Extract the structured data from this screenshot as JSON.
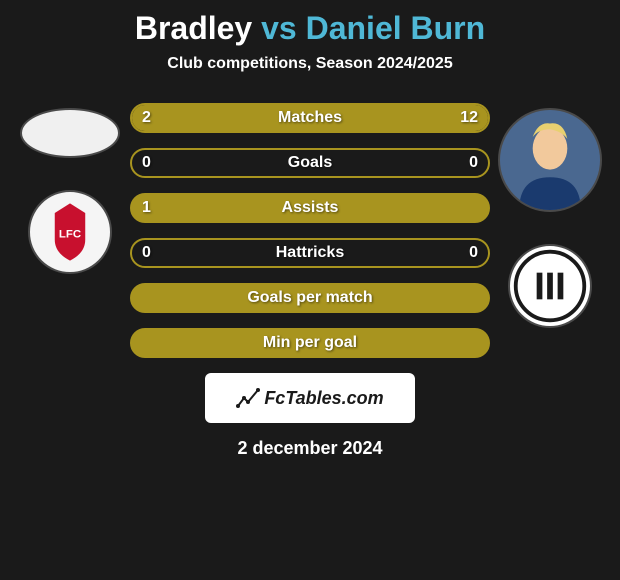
{
  "title": {
    "player1": "Bradley",
    "connector": "vs",
    "player2": "Daniel Burn"
  },
  "title_colors": {
    "p1": "#ffffff",
    "vs": "#4fb8d6",
    "p2": "#4fb8d6"
  },
  "title_fontsize": 32,
  "subtitle": "Club competitions, Season 2024/2025",
  "subtitle_fontsize": 16,
  "background_color": "#1a1a1a",
  "left_side": {
    "avatar": {
      "size": 100,
      "height": 50,
      "bg": "#f0f0f0"
    },
    "crest": {
      "size": 84,
      "bg": "#f5f5f5",
      "accent": "#c8102e",
      "label": "LFC"
    }
  },
  "right_side": {
    "avatar": {
      "size": 104,
      "bg": "#4a6890",
      "hair": "#e8d070",
      "skin": "#f2c99c",
      "shirt": "#1a3a6e"
    },
    "crest": {
      "size": 84,
      "bg": "#ffffff",
      "ring": "#1a1a1a",
      "label": "NUFC"
    }
  },
  "stats": [
    {
      "label": "Matches",
      "left_val": "2",
      "right_val": "12",
      "left_pct": 14,
      "right_pct": 86,
      "fill": "#a8941f",
      "border": "#a8941f",
      "bg": "#1a1a1a"
    },
    {
      "label": "Goals",
      "left_val": "0",
      "right_val": "0",
      "left_pct": 0,
      "right_pct": 0,
      "fill": "#a8941f",
      "border": "#a8941f",
      "bg": "#1a1a1a"
    },
    {
      "label": "Assists",
      "left_val": "1",
      "right_val": "",
      "left_pct": 100,
      "right_pct": 0,
      "fill": "#a8941f",
      "border": "#a8941f",
      "bg": "#1a1a1a",
      "full_fill": true
    },
    {
      "label": "Hattricks",
      "left_val": "0",
      "right_val": "0",
      "left_pct": 0,
      "right_pct": 0,
      "fill": "#a8941f",
      "border": "#a8941f",
      "bg": "#1a1a1a"
    },
    {
      "label": "Goals per match",
      "left_val": "",
      "right_val": "",
      "left_pct": 0,
      "right_pct": 0,
      "fill": "#a8941f",
      "border": "#a8941f",
      "bg": "#a8941f",
      "full_fill": true
    },
    {
      "label": "Min per goal",
      "left_val": "",
      "right_val": "",
      "left_pct": 0,
      "right_pct": 0,
      "fill": "#a8941f",
      "border": "#a8941f",
      "bg": "#a8941f",
      "full_fill": true
    }
  ],
  "stat_bar": {
    "height": 30,
    "radius": 15,
    "gap": 15,
    "label_fontsize": 16,
    "label_color": "#ffffff"
  },
  "watermark": "FcTables.com",
  "watermark_bg": "#ffffff",
  "date": "2 december 2024"
}
